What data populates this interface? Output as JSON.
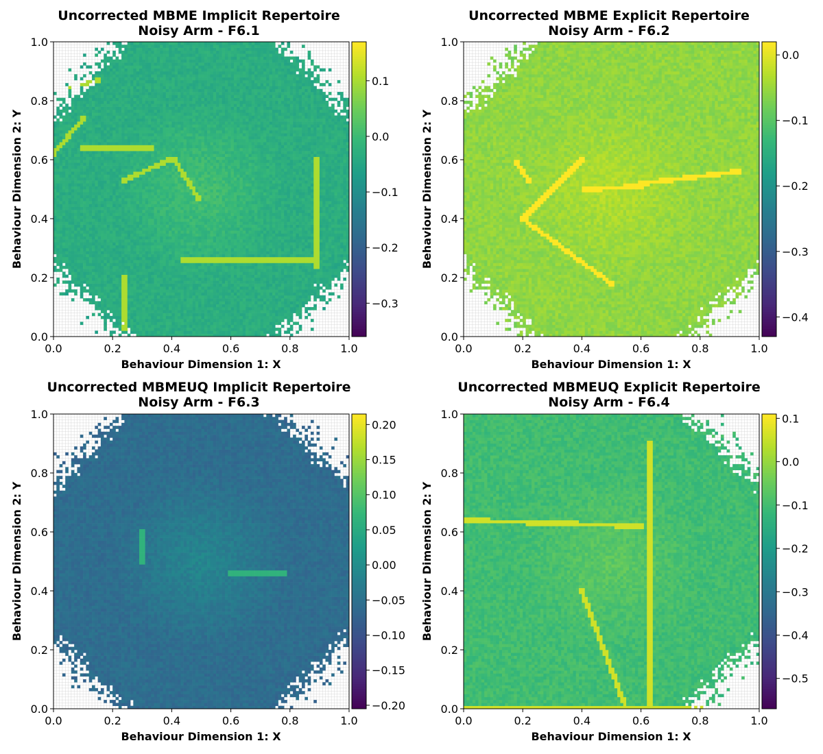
{
  "figure": {
    "colormap": "viridis",
    "colormap_stops": [
      "#440154",
      "#3b528b",
      "#21918c",
      "#5ec962",
      "#fde725"
    ],
    "empty_cell_color": "#ffffff",
    "empty_grid_color": "#cfcfcf"
  },
  "chart_data": [
    {
      "type": "heatmap",
      "title_line1": "Uncorrected MBME Implicit Repertoire",
      "title_line2": "Noisy Arm - F6.1",
      "xlabel": "Behaviour Dimension 1: X",
      "ylabel": "Behaviour Dimension 2: Y",
      "xlim": [
        0,
        1
      ],
      "ylim": [
        0,
        1
      ],
      "xticks": [
        "0.0",
        "0.2",
        "0.4",
        "0.6",
        "0.8",
        "1.0"
      ],
      "yticks": [
        "0.0",
        "0.2",
        "0.4",
        "0.6",
        "0.8",
        "1.0"
      ],
      "grid_cells": 100,
      "colorbar": {
        "min": -0.36,
        "max": 0.17,
        "ticks": [
          0.1,
          0.0,
          -0.1,
          -0.2,
          -0.3
        ],
        "tick_labels": [
          "0.1",
          "0.0",
          "−0.1",
          "−0.2",
          "−0.3"
        ]
      },
      "typical_value": -0.03,
      "center_value": 0.01,
      "empty_corners": [
        "top-left",
        "bottom-left",
        "bottom-right",
        "top-right"
      ]
    },
    {
      "type": "heatmap",
      "title_line1": "Uncorrected MBME Explicit Repertoire",
      "title_line2": "Noisy Arm - F6.2",
      "xlabel": "Behaviour Dimension 1: X",
      "ylabel": "Behaviour Dimension 2: Y",
      "xlim": [
        0,
        1
      ],
      "ylim": [
        0,
        1
      ],
      "xticks": [
        "0.0",
        "0.2",
        "0.4",
        "0.6",
        "0.8",
        "1.0"
      ],
      "yticks": [
        "0.0",
        "0.2",
        "0.4",
        "0.6",
        "0.8",
        "1.0"
      ],
      "grid_cells": 100,
      "colorbar": {
        "min": -0.43,
        "max": 0.02,
        "ticks": [
          0.0,
          -0.1,
          -0.2,
          -0.3,
          -0.4
        ],
        "tick_labels": [
          "0.0",
          "−0.1",
          "−0.2",
          "−0.3",
          "−0.4"
        ]
      },
      "typical_value": -0.055,
      "center_value": -0.03,
      "empty_corners": [
        "top-left",
        "bottom-left",
        "bottom-right"
      ]
    },
    {
      "type": "heatmap",
      "title_line1": "Uncorrected MBMEUQ Implicit Repertoire",
      "title_line2": "Noisy Arm - F6.3",
      "xlabel": "Behaviour Dimension 1: X",
      "ylabel": "Behaviour Dimension 2: Y",
      "xlim": [
        0,
        1
      ],
      "ylim": [
        0,
        1
      ],
      "xticks": [
        "0.0",
        "0.2",
        "0.4",
        "0.6",
        "0.8",
        "1.0"
      ],
      "yticks": [
        "0.0",
        "0.2",
        "0.4",
        "0.6",
        "0.8",
        "1.0"
      ],
      "grid_cells": 100,
      "colorbar": {
        "min": -0.205,
        "max": 0.215,
        "ticks": [
          0.2,
          0.15,
          0.1,
          0.05,
          0.0,
          -0.05,
          -0.1,
          -0.15,
          -0.2
        ],
        "tick_labels": [
          "0.20",
          "0.15",
          "0.10",
          "0.05",
          "0.00",
          "−0.05",
          "−0.10",
          "−0.15",
          "−0.20"
        ]
      },
      "typical_value": -0.055,
      "center_value": -0.01,
      "empty_corners": [
        "top-left",
        "top-right",
        "bottom-left",
        "bottom-right"
      ]
    },
    {
      "type": "heatmap",
      "title_line1": "Uncorrected MBMEUQ Explicit Repertoire",
      "title_line2": "Noisy Arm - F6.4",
      "xlabel": "Behaviour Dimension 1: X",
      "ylabel": "Behaviour Dimension 2: Y",
      "xlim": [
        0,
        1
      ],
      "ylim": [
        0,
        1
      ],
      "xticks": [
        "0.0",
        "0.2",
        "0.4",
        "0.6",
        "0.8",
        "1.0"
      ],
      "yticks": [
        "0.0",
        "0.2",
        "0.4",
        "0.6",
        "0.8",
        "1.0"
      ],
      "grid_cells": 100,
      "colorbar": {
        "min": -0.57,
        "max": 0.11,
        "ticks": [
          0.1,
          0.0,
          -0.1,
          -0.2,
          -0.3,
          -0.4,
          -0.5
        ],
        "tick_labels": [
          "0.1",
          "0.0",
          "−0.1",
          "−0.2",
          "−0.3",
          "−0.4",
          "−0.5"
        ]
      },
      "typical_value": -0.1,
      "center_value": -0.06,
      "empty_corners": [
        "top-right",
        "bottom-right"
      ]
    }
  ]
}
